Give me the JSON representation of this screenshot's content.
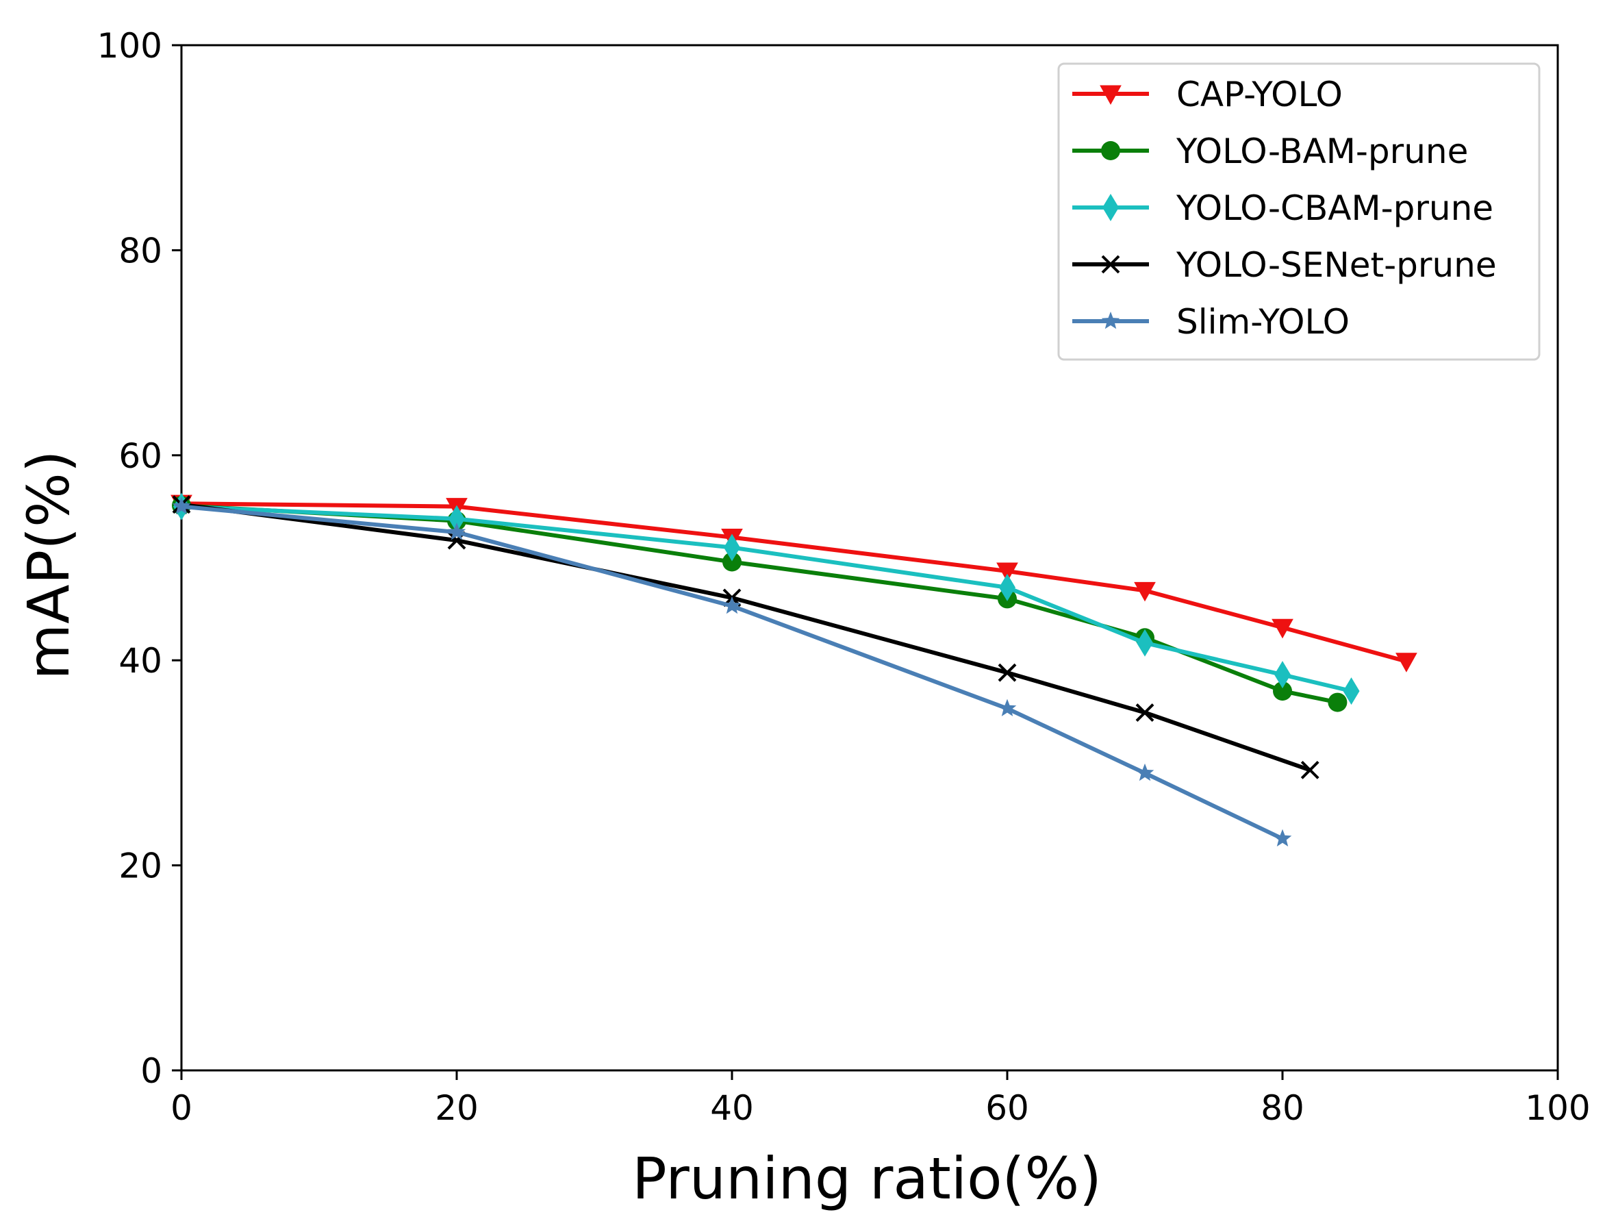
{
  "chart_data": {
    "type": "line",
    "title": "",
    "xlabel": "Pruning ratio(%)",
    "ylabel": "mAP(%)",
    "xlim": [
      0,
      100
    ],
    "ylim": [
      0,
      100
    ],
    "x_ticks": [
      "0",
      "20",
      "40",
      "60",
      "80",
      "100"
    ],
    "y_ticks": [
      "0",
      "20",
      "40",
      "60",
      "80",
      "100"
    ],
    "grid": false,
    "legend_position": "top-right",
    "series": [
      {
        "name": "CAP-YOLO",
        "color": "#ee1111",
        "marker": "triangle-down",
        "x": [
          0,
          20,
          40,
          60,
          70,
          80,
          89
        ],
        "y": [
          55.3,
          55.0,
          52.0,
          48.7,
          46.8,
          43.2,
          39.9
        ]
      },
      {
        "name": "YOLO-BAM-prune",
        "color": "#0a7f0a",
        "marker": "circle",
        "x": [
          0,
          20,
          40,
          60,
          70,
          80,
          84
        ],
        "y": [
          55.1,
          53.6,
          49.6,
          46.0,
          42.2,
          37.0,
          35.9
        ]
      },
      {
        "name": "YOLO-CBAM-prune",
        "color": "#1bbfbf",
        "marker": "diamond",
        "x": [
          0,
          20,
          40,
          60,
          70,
          80,
          85
        ],
        "y": [
          55.0,
          53.8,
          51.0,
          47.1,
          41.7,
          38.6,
          37.0
        ]
      },
      {
        "name": "YOLO-SENet-prune",
        "color": "#000000",
        "marker": "x",
        "x": [
          0,
          20,
          40,
          60,
          70,
          82
        ],
        "y": [
          55.2,
          51.7,
          46.1,
          38.8,
          34.9,
          29.3
        ]
      },
      {
        "name": "Slim-YOLO",
        "color": "#4a7fb5",
        "marker": "star",
        "x": [
          0,
          20,
          40,
          60,
          70,
          80
        ],
        "y": [
          55.0,
          52.5,
          45.3,
          35.3,
          29.0,
          22.6
        ]
      }
    ]
  }
}
